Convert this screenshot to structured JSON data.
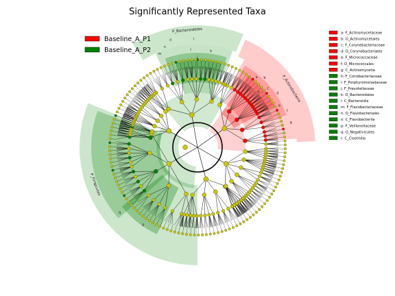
{
  "chart_data": {
    "type": "cladogram",
    "title": "Significantly Represented Taxa",
    "groups": [
      {
        "name": "Baseline_A_P1",
        "color": "#ff0000"
      },
      {
        "name": "Baseline_A_P2",
        "color": "#008000"
      }
    ],
    "clades": [
      {
        "key": "a",
        "taxon": "F_Actinomycetaceae",
        "group": "Baseline_A_P1"
      },
      {
        "key": "b",
        "taxon": "O_Actinomycetales",
        "group": "Baseline_A_P1"
      },
      {
        "key": "c",
        "taxon": "F_Corynebacteriaceae",
        "group": "Baseline_A_P1"
      },
      {
        "key": "d",
        "taxon": "O_Corynebacteriales",
        "group": "Baseline_A_P1"
      },
      {
        "key": "e",
        "taxon": "F_Micrococcaceae",
        "group": "Baseline_A_P1"
      },
      {
        "key": "f",
        "taxon": "O_Micrococcales",
        "group": "Baseline_A_P1"
      },
      {
        "key": "g",
        "taxon": "C_Actinomycetia",
        "group": "Baseline_A_P1"
      },
      {
        "key": "h",
        "taxon": "F_Coriobacteriaceae",
        "group": "Baseline_A_P2"
      },
      {
        "key": "i",
        "taxon": "F_Porphyromonadaceae",
        "group": "Baseline_A_P2"
      },
      {
        "key": "j",
        "taxon": "F_Prevotellaceae",
        "group": "Baseline_A_P2"
      },
      {
        "key": "k",
        "taxon": "O_Bacteroidales",
        "group": "Baseline_A_P2"
      },
      {
        "key": "l",
        "taxon": "C_Bacteroidia",
        "group": "Baseline_A_P2"
      },
      {
        "key": "m",
        "taxon": "F_Flavobacteriaceae",
        "group": "Baseline_A_P2"
      },
      {
        "key": "n",
        "taxon": "O_Flavobacteriales",
        "group": "Baseline_A_P2"
      },
      {
        "key": "o",
        "taxon": "C_Flavobacteriia",
        "group": "Baseline_A_P2"
      },
      {
        "key": "p",
        "taxon": "F_Veillonellaceae",
        "group": "Baseline_A_P2"
      },
      {
        "key": "q",
        "taxon": "O_Negativicutes",
        "group": "Baseline_A_P2"
      },
      {
        "key": "r",
        "taxon": "C_Clostridia",
        "group": "Baseline_A_P2"
      }
    ],
    "phyla": [
      {
        "label": "P_Bacteroidetes",
        "group": "Baseline_A_P2"
      },
      {
        "label": "P_Actinobacteria",
        "group": "Baseline_A_P1"
      },
      {
        "label": "P_Firmicutes",
        "group": "Baseline_A_P2"
      }
    ],
    "legend_position": "top-left",
    "key_position": "right"
  }
}
